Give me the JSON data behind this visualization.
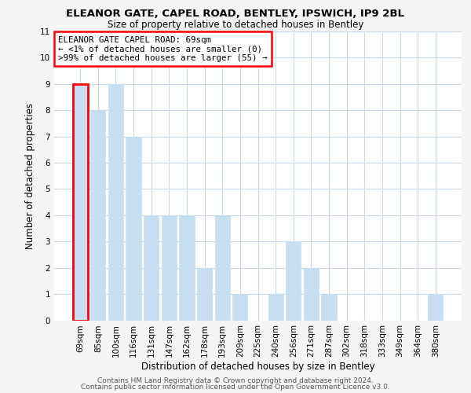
{
  "title": "ELEANOR GATE, CAPEL ROAD, BENTLEY, IPSWICH, IP9 2BL",
  "subtitle": "Size of property relative to detached houses in Bentley",
  "xlabel": "Distribution of detached houses by size in Bentley",
  "ylabel": "Number of detached properties",
  "footnote1": "Contains HM Land Registry data © Crown copyright and database right 2024.",
  "footnote2": "Contains public sector information licensed under the Open Government Licence v3.0.",
  "categories": [
    "69sqm",
    "85sqm",
    "100sqm",
    "116sqm",
    "131sqm",
    "147sqm",
    "162sqm",
    "178sqm",
    "193sqm",
    "209sqm",
    "225sqm",
    "240sqm",
    "256sqm",
    "271sqm",
    "287sqm",
    "302sqm",
    "318sqm",
    "333sqm",
    "349sqm",
    "364sqm",
    "380sqm"
  ],
  "values": [
    9,
    8,
    9,
    7,
    4,
    4,
    4,
    2,
    4,
    1,
    0,
    1,
    3,
    2,
    1,
    0,
    0,
    0,
    0,
    0,
    1
  ],
  "bar_color": "#c5dff0",
  "bar_edge_color": "#c5dff0",
  "highlight_index": 0,
  "highlight_edge_color": "red",
  "legend_title": "ELEANOR GATE CAPEL ROAD: 69sqm",
  "legend_line1": "← <1% of detached houses are smaller (0)",
  "legend_line2": ">99% of detached houses are larger (55) →",
  "ylim": [
    0,
    11
  ],
  "yticks": [
    0,
    1,
    2,
    3,
    4,
    5,
    6,
    7,
    8,
    9,
    10,
    11
  ],
  "background_color": "#f5f5f5",
  "plot_background_color": "#ffffff",
  "grid_color": "#c8d8e8",
  "title_fontsize": 9.5,
  "subtitle_fontsize": 8.5,
  "axis_label_fontsize": 8.5,
  "tick_fontsize": 7.5,
  "legend_fontsize": 7.8,
  "footnote_fontsize": 6.5
}
